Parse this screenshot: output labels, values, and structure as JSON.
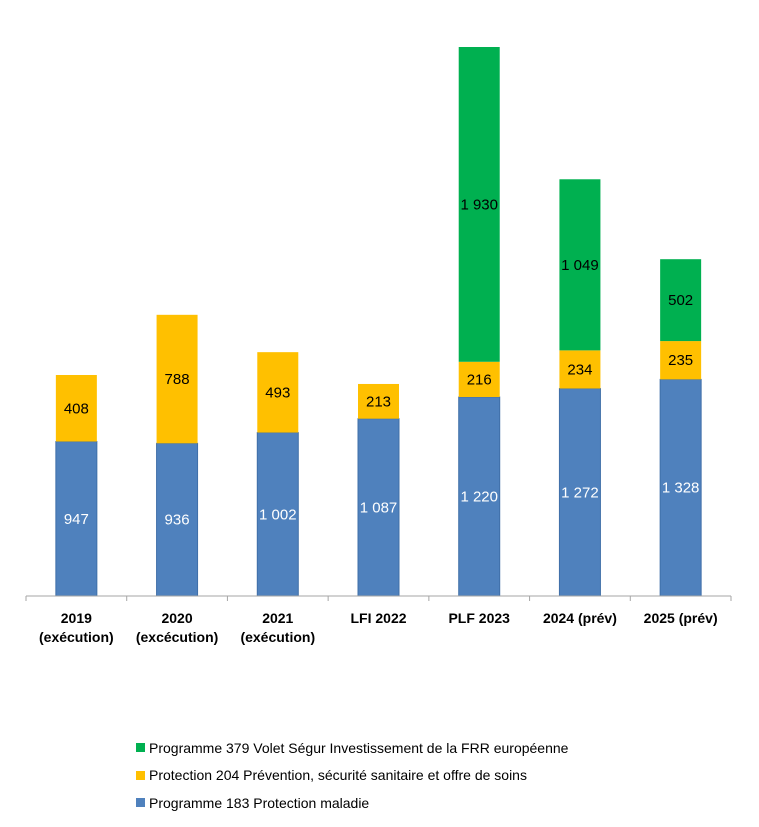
{
  "chart_data": {
    "type": "bar",
    "stacked": true,
    "title": "",
    "xlabel": "",
    "ylabel": "",
    "ylim": [
      0,
      3366
    ],
    "grid": false,
    "legend_position": "bottom",
    "categories": [
      [
        "2019",
        "(exécution)"
      ],
      [
        "2020",
        "(excécution)"
      ],
      [
        "2021",
        "(exécution)"
      ],
      [
        "LFI 2022"
      ],
      [
        "PLF 2023"
      ],
      [
        "2024 (prév)"
      ],
      [
        "2025 (prév)"
      ]
    ],
    "series": [
      {
        "name": "Programme 183 Protection maladie",
        "color": "#4f81bd",
        "label_color": "#ffffff",
        "values": [
          947,
          936,
          1002,
          1087,
          1220,
          1272,
          1328
        ],
        "labels": [
          "947",
          "936",
          "1 002",
          "1 087",
          "1 220",
          "1 272",
          "1 328"
        ]
      },
      {
        "name": "Protection 204 Prévention, sécurité sanitaire et offre de soins",
        "color": "#ffc000",
        "label_color": "#000000",
        "values": [
          408,
          788,
          493,
          213,
          216,
          234,
          235
        ],
        "labels": [
          "408",
          "788",
          "493",
          "213",
          "216",
          "234",
          "235"
        ]
      },
      {
        "name": "Programme 379 Volet Ségur Investissement de la FRR européenne",
        "color": "#00b050",
        "label_color": "#000000",
        "values": [
          null,
          null,
          null,
          null,
          1930,
          1049,
          502
        ],
        "labels": [
          null,
          null,
          null,
          null,
          "1 930",
          "1 049",
          "502"
        ]
      }
    ],
    "legend": [
      {
        "name": "Programme 379 Volet Ségur Investissement de la FRR européenne",
        "color": "#00b050"
      },
      {
        "name": "Protection 204 Prévention, sécurité sanitaire et offre de soins",
        "color": "#ffc000"
      },
      {
        "name": "Programme 183 Protection maladie",
        "color": "#4f81bd"
      }
    ]
  }
}
